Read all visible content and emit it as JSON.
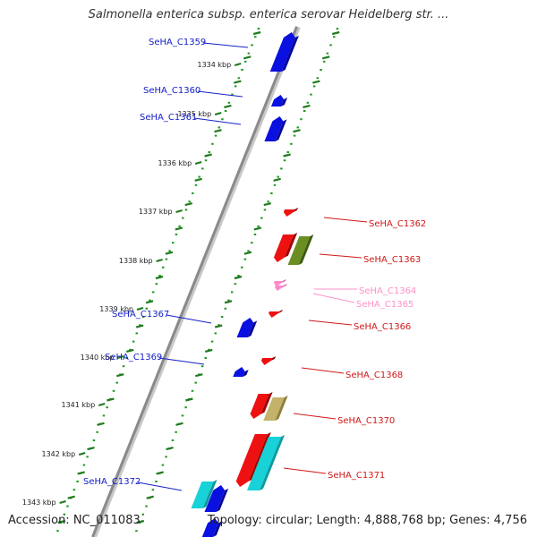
{
  "title": "Salmonella enterica subsp. enterica serovar Heidelberg str. ...",
  "footer": {
    "accession": "Accession: NC_011083",
    "topology": "Topology: circular; Length: 4,888,768 bp; Genes: 4,756"
  },
  "colors": {
    "backbone": "#8a8a8a",
    "tick_dots": "#1f9a1f",
    "tick_major": "#1f7a1f",
    "forward_gene": "#0a10e0",
    "reverse_gene": "#ee1111",
    "pseudo_gene": "#ff88cc",
    "rna_olive": "#6b8e23",
    "rna_tan": "#c2b26a",
    "rna_cyan": "#18d2d8",
    "label_forward": "#1520c8",
    "label_reverse": "#d01818",
    "label_pseudo": "#ff90c8"
  },
  "scale_ticks": [
    "1334 kbp",
    "1335 kbp",
    "1336 kbp",
    "1337 kbp",
    "1338 kbp",
    "1339 kbp",
    "1340 kbp",
    "1341 kbp",
    "1342 kbp",
    "1343 kbp"
  ],
  "labels": [
    {
      "text": "SeHA_C1359",
      "side": "left",
      "type": "forward"
    },
    {
      "text": "SeHA_C1360",
      "side": "left",
      "type": "forward"
    },
    {
      "text": "SeHA_C1361",
      "side": "left",
      "type": "forward"
    },
    {
      "text": "SeHA_C1362",
      "side": "right",
      "type": "reverse"
    },
    {
      "text": "SeHA_C1363",
      "side": "right",
      "type": "reverse"
    },
    {
      "text": "SeHA_C1364",
      "side": "right",
      "type": "pseudo"
    },
    {
      "text": "SeHA_C1365",
      "side": "right",
      "type": "pseudo"
    },
    {
      "text": "SeHA_C1366",
      "side": "right",
      "type": "reverse"
    },
    {
      "text": "SeHA_C1367",
      "side": "left",
      "type": "forward"
    },
    {
      "text": "SeHA_C1368",
      "side": "right",
      "type": "reverse"
    },
    {
      "text": "SeHA_C1369",
      "side": "left",
      "type": "forward"
    },
    {
      "text": "SeHA_C1370",
      "side": "right",
      "type": "reverse"
    },
    {
      "text": "SeHA_C1371",
      "side": "right",
      "type": "reverse"
    },
    {
      "text": "SeHA_C1372",
      "side": "left",
      "type": "forward"
    }
  ]
}
